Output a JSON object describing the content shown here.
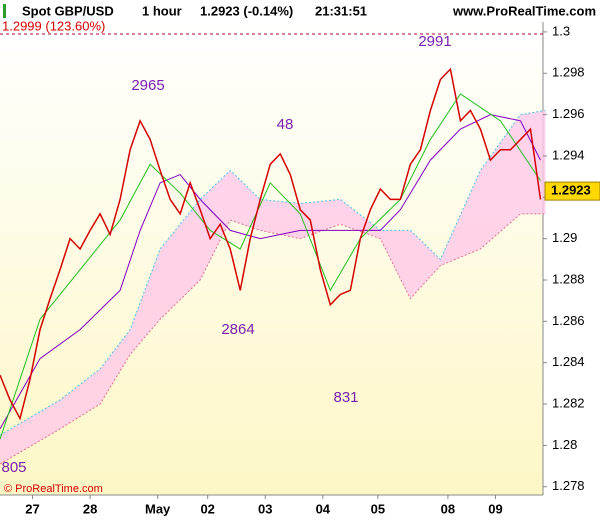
{
  "chart_data": {
    "type": "line",
    "header": {
      "symbol": "Spot GBP/USD",
      "interval": "1 hour",
      "quote": "1.2923 (-0.14%)",
      "time": "21:31:51",
      "site": "www.ProRealTime.com"
    },
    "footer": "© ProRealTime.com",
    "x": [
      0,
      4,
      8,
      12,
      16,
      20,
      24,
      28,
      32,
      36,
      40,
      44,
      48,
      52,
      56,
      60,
      64,
      68,
      72,
      76,
      80,
      84,
      88,
      92,
      96,
      100,
      104,
      108,
      112,
      116,
      120,
      124,
      128,
      132,
      136,
      140,
      144,
      148,
      152,
      156,
      160,
      164,
      168,
      172,
      176,
      180,
      184,
      188,
      192,
      196,
      200,
      204,
      208,
      212,
      216
    ],
    "series": [
      {
        "color": "#d40000",
        "values": [
          1.2834,
          1.2822,
          1.2813,
          1.2832,
          1.2856,
          1.2871,
          1.2885,
          1.29,
          1.2895,
          1.2904,
          1.2912,
          1.2902,
          1.2919,
          1.2943,
          1.2957,
          1.2948,
          1.2933,
          1.2919,
          1.2912,
          1.2927,
          1.2914,
          1.29,
          1.2907,
          1.2895,
          1.2875,
          1.29,
          1.2919,
          1.2936,
          1.2941,
          1.2931,
          1.2914,
          1.2909,
          1.2885,
          1.2868,
          1.2873,
          1.2875,
          1.29,
          1.2914,
          1.2924,
          1.2919,
          1.2919,
          1.2936,
          1.2943,
          1.2962,
          1.2977,
          1.2982,
          1.2957,
          1.2962,
          1.2953,
          1.2938,
          1.2943,
          1.2943,
          1.2948,
          1.2953,
          1.2919
        ]
      }
    ],
    "kijun": {
      "color": "#8000c0",
      "x": [
        0,
        16,
        32,
        48,
        56,
        64,
        72,
        80,
        92,
        104,
        120,
        132,
        144,
        152,
        160,
        172,
        184,
        196,
        208,
        216
      ],
      "values": [
        1.2808,
        1.2842,
        1.2856,
        1.2875,
        1.2904,
        1.2927,
        1.2931,
        1.2919,
        1.2904,
        1.29,
        1.2904,
        1.2904,
        1.2904,
        1.2904,
        1.2914,
        1.2938,
        1.2953,
        1.296,
        1.2957,
        1.2938
      ]
    },
    "tenkan": {
      "color": "#20c020",
      "x": [
        0,
        16,
        32,
        48,
        60,
        72,
        84,
        96,
        108,
        120,
        132,
        144,
        160,
        172,
        184,
        200,
        216
      ],
      "values": [
        1.2803,
        1.2861,
        1.2885,
        1.2909,
        1.2936,
        1.2922,
        1.2904,
        1.2895,
        1.2927,
        1.2912,
        1.2875,
        1.29,
        1.2919,
        1.2948,
        1.297,
        1.2957,
        1.2928
      ]
    },
    "cloud": {
      "color": "#ffc8e8",
      "x": [
        0,
        24,
        40,
        52,
        64,
        80,
        92,
        104,
        120,
        136,
        152,
        164,
        176,
        192,
        208,
        218
      ],
      "span_a": [
        1.2805,
        1.2822,
        1.2837,
        1.2856,
        1.2895,
        1.2919,
        1.2933,
        1.2919,
        1.2917,
        1.2919,
        1.2904,
        1.2904,
        1.289,
        1.2933,
        1.296,
        1.2962
      ],
      "span_b": [
        1.2791,
        1.2808,
        1.282,
        1.2844,
        1.2861,
        1.288,
        1.2909,
        1.2904,
        1.29,
        1.2907,
        1.29,
        1.2871,
        1.2887,
        1.2895,
        1.2912,
        1.2912
      ]
    },
    "annotations": [
      "805",
      "2965",
      "48",
      "2864",
      "831",
      "2991"
    ],
    "target": {
      "level": 1.2999,
      "label": "1.2999 (123.60%)"
    },
    "last_price": 1.2923,
    "xlim": [
      0,
      217
    ],
    "xticks": [
      {
        "value": 13,
        "label": "27"
      },
      {
        "value": 36,
        "label": "28"
      },
      {
        "value": 63,
        "label": "May"
      },
      {
        "value": 83,
        "label": "02"
      },
      {
        "value": 106,
        "label": "03"
      },
      {
        "value": 129,
        "label": "04"
      },
      {
        "value": 151,
        "label": "05"
      },
      {
        "value": 179,
        "label": "08"
      },
      {
        "value": 198,
        "label": "09"
      }
    ],
    "ylim": [
      1.2776,
      1.30048
    ],
    "yticks": [
      1.278,
      1.28,
      1.282,
      1.284,
      1.286,
      1.288,
      1.29,
      1.292,
      1.294,
      1.296,
      1.298,
      1.3
    ],
    "grid": false
  }
}
